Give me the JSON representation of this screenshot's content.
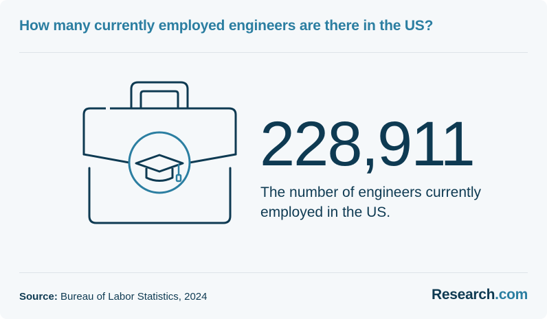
{
  "header": {
    "title": "How many currently employed engineers are there in the US?"
  },
  "stat": {
    "number": "228,911",
    "description": "The number of engineers currently employed in the US."
  },
  "footer": {
    "source_label": "Source:",
    "source_text": "Bureau of Labor Statistics, 2024",
    "logo_main": "Research",
    "logo_suffix": ".com"
  },
  "colors": {
    "background": "#f5f8fa",
    "title": "#2b7ea1",
    "text": "#0e3a52",
    "icon_stroke": "#0e3a52",
    "icon_accent": "#2b7ea1"
  },
  "icons": {
    "main": "briefcase-icon",
    "badge": "graduation-cap-icon"
  }
}
